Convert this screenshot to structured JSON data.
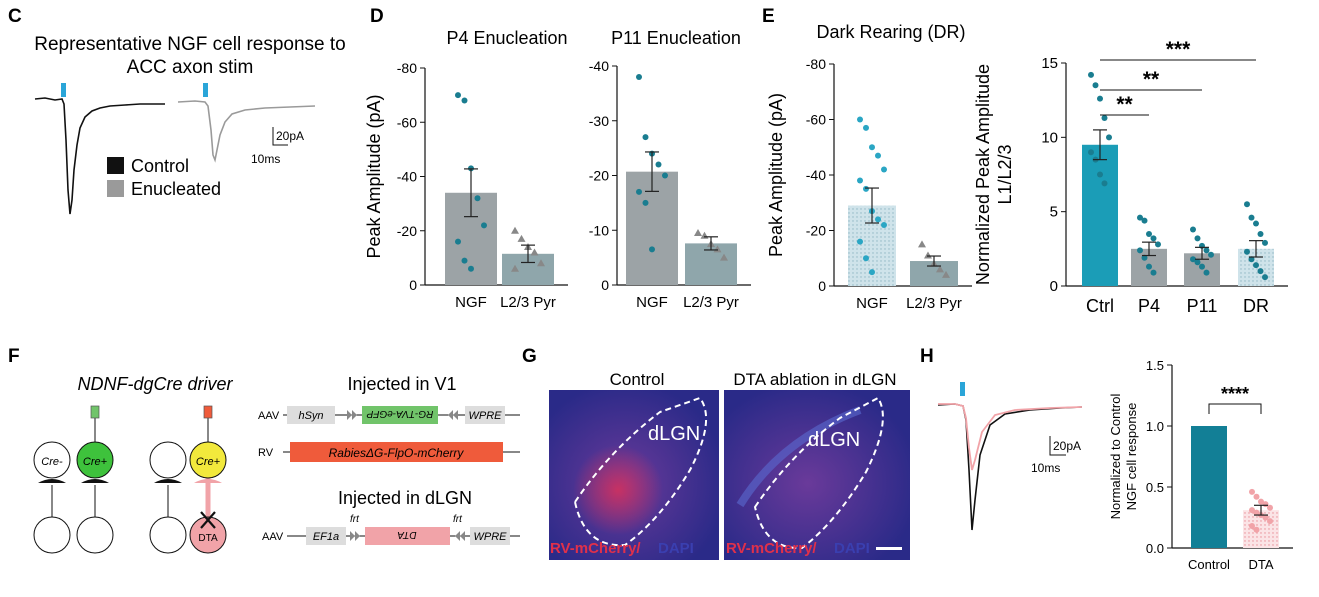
{
  "colors": {
    "bar_grey": "#9ca3a6",
    "bar_teal": "#1b9db7",
    "bar_teal_dark": "#127f96",
    "dot_teal": "#1a7d90",
    "dot_cyan": "#2aa6c4",
    "tri": "#888888",
    "control_trace": "#111111",
    "enuc_trace": "#9a9a9a",
    "stim": "#2aa5d8",
    "dta_pink": "#f1a3a8",
    "rv_red": "#e0304a",
    "dapi_blue": "#3a3fb0",
    "green_box": "#71c46a",
    "orange_box": "#ef5b3b"
  },
  "panels": {
    "C": {
      "letter": "C",
      "title1": "Representative NGF cell response to",
      "title2": "ACC axon stim",
      "legend": [
        {
          "label": "Control",
          "color": "#111111"
        },
        {
          "label": "Enucleated",
          "color": "#9a9a9a"
        }
      ],
      "scale_y": "20pA",
      "scale_x": "10ms"
    },
    "D": {
      "letter": "D"
    },
    "E": {
      "letter": "E"
    },
    "F": {
      "letter": "F",
      "driver": "NDNF-dgCre driver",
      "cre_minus": "Cre-",
      "cre_plus": "Cre+",
      "dta": "DTA",
      "injected_v1": "Injected in V1",
      "injected_dlgn": "Injected in dLGN",
      "aav": "AAV",
      "rv": "RV",
      "hsyn": "hSyn",
      "rg_tva": "RG-TVA-eGFP",
      "wpre": "WPRE",
      "rabies": "RabiesΔG-FlpO-mCherry",
      "ef1a": "EF1a",
      "frt": "frt",
      "dta_rev": "DTA"
    },
    "G": {
      "letter": "G",
      "control": "Control",
      "ablation": "DTA ablation in dLGN",
      "dlgn": "dLGN",
      "rv_mcherry": "RV-mCherry/",
      "dapi": "DAPI"
    },
    "H": {
      "letter": "H",
      "scale_y": "20pA",
      "scale_x": "10ms"
    }
  },
  "chart_data": [
    {
      "id": "D-P4",
      "type": "bar",
      "title": "P4 Enucleation",
      "ylabel": "Peak  Amplitude (pA)",
      "categories": [
        "NGF",
        "L2/3 Pyr"
      ],
      "ylim": [
        0,
        -80
      ],
      "yticks": [
        "0",
        "-20",
        "-40",
        "-60",
        "-80"
      ],
      "values": [
        -34,
        -11.5
      ],
      "sem": [
        8.8,
        3.2
      ],
      "points": [
        [
          -70,
          -68,
          -43,
          -32,
          -22,
          -16,
          -9,
          -6
        ],
        [
          -20,
          -17,
          -14,
          -12,
          -8,
          -6
        ]
      ]
    },
    {
      "id": "D-P11",
      "type": "bar",
      "title": "P11 Enucleation",
      "ylabel": "",
      "categories": [
        "NGF",
        "L2/3 Pyr"
      ],
      "ylim": [
        0,
        -40
      ],
      "yticks": [
        "0",
        "-10",
        "-20",
        "-30",
        "-40"
      ],
      "values": [
        -20.7,
        -7.6
      ],
      "sem": [
        3.6,
        1.2
      ],
      "points": [
        [
          -38,
          -27,
          -24,
          -22,
          -20,
          -17,
          -15,
          -6.5
        ],
        [
          -9.5,
          -9,
          -7.5,
          -6.5,
          -5
        ]
      ]
    },
    {
      "id": "E-DR",
      "type": "bar",
      "title": "Dark Rearing (DR)",
      "ylabel": "Peak  Amplitude (pA)",
      "categories": [
        "NGF",
        "L2/3 Pyr"
      ],
      "ylim": [
        0,
        -80
      ],
      "yticks": [
        "0",
        "-20",
        "-40",
        "-60",
        "-80"
      ],
      "values": [
        -29,
        -9
      ],
      "sem": [
        6.3,
        1.8
      ],
      "points": [
        [
          -60,
          -57,
          -50,
          -47,
          -42,
          -38,
          -35,
          -27,
          -24,
          -22,
          -16,
          -10,
          -5
        ],
        [
          -15,
          -11,
          -8,
          -6,
          -4
        ]
      ]
    },
    {
      "id": "E-norm",
      "type": "bar",
      "title": "",
      "ylabel": "Normalized  Peak Amplitude\nL1/L2/3",
      "categories": [
        "Ctrl",
        "P4",
        "P11",
        "DR"
      ],
      "ylim": [
        0,
        15
      ],
      "yticks": [
        "0",
        "5",
        "10",
        "15"
      ],
      "values": [
        9.5,
        2.5,
        2.2,
        2.5
      ],
      "sem": [
        1.0,
        0.45,
        0.4,
        0.55
      ],
      "points": [
        [
          14.2,
          13.5,
          12.6,
          11.3,
          10.0,
          9.0,
          8.5,
          7.5,
          6.9
        ],
        [
          4.6,
          4.4,
          3.5,
          3.2,
          2.8,
          2.4,
          1.9,
          1.3,
          0.9
        ],
        [
          3.8,
          3.2,
          2.7,
          2.4,
          2.1,
          1.8,
          1.6,
          1.3,
          0.9
        ],
        [
          5.5,
          4.6,
          4.2,
          3.5,
          2.9,
          2.3,
          1.8,
          1.4,
          1.0,
          0.6
        ]
      ],
      "significance": [
        "**",
        "**",
        "***"
      ]
    },
    {
      "id": "H-norm",
      "type": "bar",
      "title": "",
      "ylabel": "Normalized to Control\nNGF cell response",
      "categories": [
        "Control",
        "DTA"
      ],
      "ylim": [
        0,
        1.5
      ],
      "yticks": [
        "0.0",
        "0.5",
        "1.0",
        "1.5"
      ],
      "values": [
        1.0,
        0.31
      ],
      "sem": [
        0,
        0.04
      ],
      "points": [
        [],
        [
          0.46,
          0.42,
          0.38,
          0.36,
          0.33,
          0.31,
          0.29,
          0.27,
          0.25,
          0.22,
          0.18,
          0.15
        ]
      ],
      "significance": [
        "****"
      ]
    }
  ]
}
